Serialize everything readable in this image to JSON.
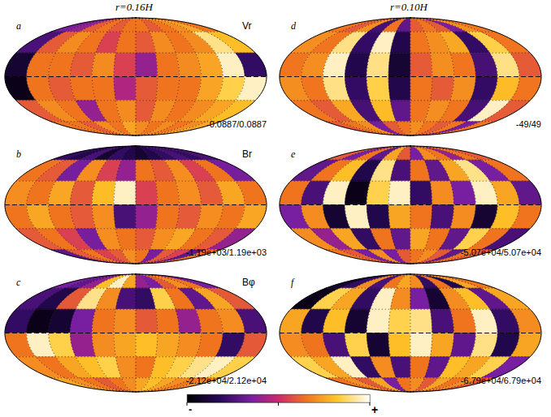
{
  "chart_data": {
    "type": "mollweide_heatmap",
    "grid": true,
    "lon_edges": [
      -180,
      -150,
      -120,
      -90,
      -60,
      -30,
      0,
      30,
      60,
      90,
      120,
      150,
      180
    ],
    "lat_edges": [
      90,
      60,
      30,
      0,
      -30,
      -60,
      -90
    ],
    "colorbar": {
      "low_label": "-",
      "high_label": "+"
    },
    "columns": [
      {
        "title": "r=0.16H",
        "panels": [
          {
            "letter": "a",
            "variable": "Vr",
            "range": {
              "value": [
                -0.0887,
                0.0887
              ],
              "label": "-0.0887/0.0887"
            },
            "cells": [
              [
                -0.027,
                -0.018,
                0.018,
                0.027,
                0.018,
                0.027,
                0.027,
                0.018,
                0.027,
                0.035,
                0.044,
                0.027
              ],
              [
                -0.044,
                0.018,
                0.035,
                0.027,
                0.009,
                0.027,
                0.018,
                0.035,
                0.027,
                0.035,
                0.071,
                0.053
              ],
              [
                -0.071,
                0.027,
                0.027,
                0.018,
                0.035,
                0.009,
                -0.018,
                0.027,
                0.035,
                0.044,
                0.08,
                -0.053
              ],
              [
                -0.08,
                0.027,
                0.018,
                0.027,
                0.027,
                -0.009,
                0.018,
                0.027,
                0.027,
                0.044,
                0.062,
                0.08
              ],
              [
                0.018,
                0.035,
                0.027,
                -0.018,
                0.027,
                0.035,
                0.018,
                0.035,
                0.027,
                0.035,
                0.044,
                0.053
              ],
              [
                0.027,
                0.027,
                0.018,
                0.035,
                0.027,
                0.044,
                0.035,
                0.027,
                0.035,
                0.027,
                0.035,
                0.044
              ]
            ]
          },
          {
            "letter": "b",
            "variable": "Br",
            "range": {
              "value": [
                -1190,
                1190
              ],
              "label": "-1.19e+03/1.19e+03"
            },
            "cells": [
              [
                -710,
                -830,
                -600,
                -950,
                -710,
                -830,
                -950,
                -830,
                -710,
                -600,
                -710,
                -600
              ],
              [
                360,
                240,
                -360,
                480,
                120,
                -240,
                360,
                240,
                480,
                120,
                360,
                -360
              ],
              [
                480,
                360,
                600,
                240,
                710,
                1070,
                120,
                360,
                480,
                240,
                600,
                360
              ],
              [
                360,
                600,
                360,
                240,
                480,
                -600,
                -240,
                360,
                240,
                480,
                360,
                600
              ],
              [
                240,
                360,
                120,
                -360,
                480,
                360,
                240,
                480,
                600,
                360,
                240,
                -240
              ],
              [
                -480,
                240,
                360,
                120,
                240,
                480,
                360,
                -360,
                240,
                120,
                -480,
                360
              ]
            ]
          },
          {
            "letter": "c",
            "variable": "Bφ",
            "range": {
              "value": [
                -21200,
                21200
              ],
              "label": "-2.12e+04/2.12e+04"
            },
            "cells": [
              [
                -6400,
                -8500,
                -4200,
                12700,
                19100,
                10600,
                -4200,
                -6400,
                4200,
                8500,
                6400,
                -6400
              ],
              [
                -10600,
                -14800,
                4200,
                17000,
                8500,
                -10600,
                -12700,
                14800,
                6400,
                -8500,
                10600,
                4200
              ],
              [
                -12700,
                -19100,
                -17000,
                -6400,
                6400,
                8500,
                4200,
                6400,
                -4200,
                6400,
                8500,
                -10600
              ],
              [
                6400,
                19100,
                14800,
                -4200,
                8500,
                10600,
                12700,
                10600,
                8500,
                6400,
                -12700,
                4200
              ],
              [
                8500,
                6400,
                10600,
                12700,
                14800,
                8500,
                6400,
                12700,
                14800,
                17000,
                19100,
                14800
              ],
              [
                10600,
                8500,
                6400,
                4200,
                6400,
                8500,
                10600,
                12700,
                10600,
                8500,
                6400,
                8500
              ]
            ]
          }
        ]
      },
      {
        "title": "r=0.10H",
        "panels": [
          {
            "letter": "d",
            "range": {
              "value": [
                -49,
                49
              ],
              "label": "-49/49"
            },
            "cells": [
              [
                15,
                10,
                20,
                -25,
                15,
                -20,
                10,
                15,
                10,
                -15,
                20,
                15
              ],
              [
                20,
                15,
                39,
                -29,
                44,
                -34,
                15,
                20,
                25,
                -29,
                34,
                15
              ],
              [
                15,
                20,
                44,
                -34,
                39,
                -39,
                10,
                20,
                15,
                -25,
                39,
                10
              ],
              [
                20,
                15,
                39,
                -29,
                34,
                -34,
                15,
                10,
                20,
                -29,
                29,
                15
              ],
              [
                15,
                10,
                25,
                -25,
                29,
                -20,
                15,
                20,
                15,
                -25,
                44,
                10
              ],
              [
                10,
                15,
                20,
                -15,
                10,
                15,
                20,
                15,
                10,
                15,
                -15,
                15
              ]
            ]
          },
          {
            "letter": "e",
            "range": {
              "value": [
                -50700,
                50700
              ],
              "label": "-5.07e+04/5.07e+04"
            },
            "cells": [
              [
                10100,
                -15200,
                15200,
                -20300,
                25400,
                10100,
                -15200,
                20300,
                15200,
                -10100,
                15200,
                10100
              ],
              [
                -20300,
                15200,
                30400,
                -35500,
                40600,
                -25400,
                15200,
                -20300,
                25400,
                40600,
                -15200,
                15200
              ],
              [
                15200,
                -25400,
                45600,
                -45600,
                35500,
                45600,
                -30400,
                20300,
                -15200,
                45600,
                25400,
                -20300
              ],
              [
                -15200,
                20300,
                -40600,
                45600,
                -35500,
                25400,
                15200,
                -25400,
                20300,
                -40600,
                30400,
                15200
              ],
              [
                20300,
                -10100,
                25400,
                -30400,
                15200,
                -20300,
                25400,
                15200,
                -20300,
                35500,
                15200,
                -25400
              ],
              [
                15200,
                10100,
                -15200,
                20300,
                -15200,
                10100,
                15200,
                20300,
                10100,
                -20300,
                15200,
                10100
              ]
            ]
          },
          {
            "letter": "f",
            "range": {
              "value": [
                -67900,
                67900
              ],
              "label": "-6.79e+04/6.79e+04"
            },
            "cells": [
              [
                -54300,
                -40700,
                27200,
                -34000,
                20400,
                34000,
                27200,
                -40700,
                20400,
                -47500,
                34000,
                20400
              ],
              [
                -61100,
                47500,
                34000,
                -40700,
                61100,
                27200,
                -20400,
                -54300,
                27200,
                40700,
                -27200,
                34000
              ],
              [
                34000,
                -47500,
                40700,
                -54300,
                61100,
                47500,
                54300,
                -34000,
                20400,
                61100,
                -40700,
                27200
              ],
              [
                27200,
                20400,
                -34000,
                47500,
                -54300,
                40700,
                61100,
                34000,
                -27200,
                54300,
                -47500,
                34000
              ],
              [
                47500,
                34000,
                61100,
                -40700,
                27200,
                -34000,
                20400,
                -27200,
                40700,
                34000,
                47500,
                -20400
              ],
              [
                20400,
                27200,
                13600,
                34000,
                -20400,
                20400,
                27200,
                13600,
                34000,
                20400,
                27200,
                13600
              ]
            ]
          }
        ]
      }
    ]
  }
}
